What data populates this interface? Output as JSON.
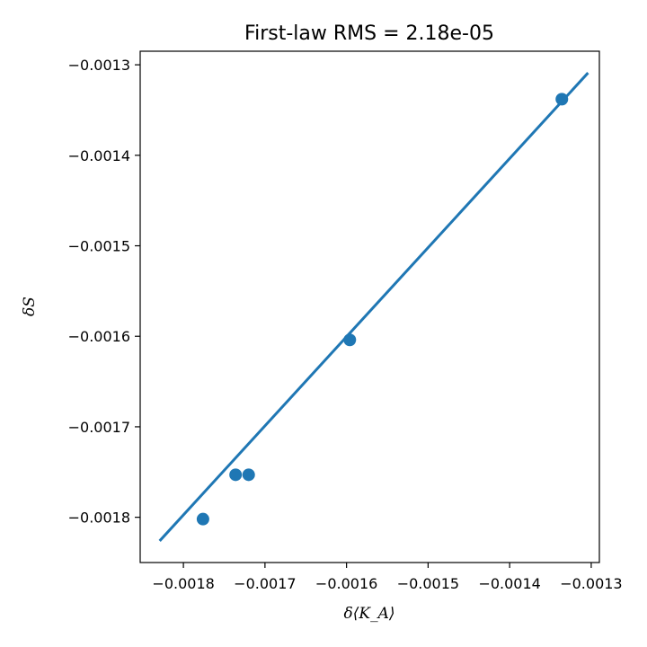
{
  "chart_data": {
    "type": "scatter",
    "title": "First-law RMS = 2.18e-05",
    "xlabel": "δ⟨K_A⟩",
    "ylabel": "δS",
    "xlim": [
      -0.001853,
      -0.00129
    ],
    "ylim": [
      -0.00185,
      -0.001285
    ],
    "xticks": [
      -0.0018,
      -0.0017,
      -0.0016,
      -0.0015,
      -0.0014,
      -0.0013
    ],
    "xtick_labels": [
      "−0.0018",
      "−0.0017",
      "−0.0016",
      "−0.0015",
      "−0.0014",
      "−0.0013"
    ],
    "yticks": [
      -0.0018,
      -0.0017,
      -0.0016,
      -0.0015,
      -0.0014,
      -0.0013
    ],
    "ytick_labels": [
      "−0.0018",
      "−0.0017",
      "−0.0016",
      "−0.0015",
      "−0.0014",
      "−0.0013"
    ],
    "grid": false,
    "color": "#1f77b4",
    "points": {
      "x": [
        -0.001776,
        -0.001736,
        -0.00172,
        -0.001596,
        -0.001336
      ],
      "y": [
        -0.001802,
        -0.001753,
        -0.001753,
        -0.001604,
        -0.001338
      ]
    },
    "fit_line": {
      "x": [
        -0.001828,
        -0.001305
      ],
      "y": [
        -0.001825,
        -0.00131
      ]
    }
  }
}
